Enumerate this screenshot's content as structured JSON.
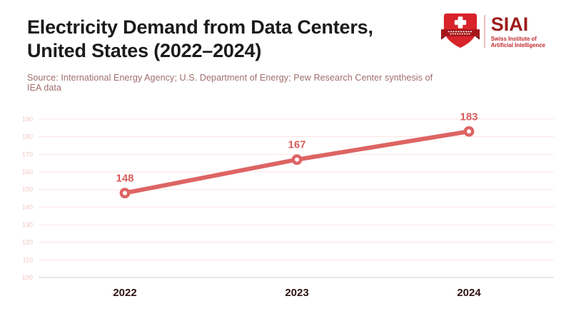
{
  "header": {
    "title_line1": "Electricity Demand from Data Centers,",
    "title_line2": "United States (2022–2024)",
    "source": "Source: International Energy Agency; U.S. Department of Energy; Pew Research Center synthesis of IEA data"
  },
  "logo": {
    "wordmark": "SIAI",
    "tagline_line1": "Swiss Institute of",
    "tagline_line2": "Artificial Intelligence"
  },
  "colors": {
    "title": "#1b1b1b",
    "source": "#a06c6c",
    "accent": "#dd6464",
    "value_label": "#d85c5c",
    "grid": "#fbe4e4",
    "axis_baseline": "#cfcfcf",
    "y_tick": "#f3c6c6",
    "x_tick": "#2e1212",
    "logo_red": "#d8232a",
    "logo_dark_red": "#9e1c1c",
    "logo_banner": "#a4161a",
    "logo_banner_dark": "#7c0e12",
    "logo_tagline": "#c0272d",
    "logo_divider": "#e9bcbc"
  },
  "chart_data": {
    "type": "line",
    "title": "Electricity Demand from Data Centers, United States (2022–2024)",
    "categories": [
      "2022",
      "2023",
      "2024"
    ],
    "values": [
      148,
      167,
      183
    ],
    "data_labels": [
      "148",
      "167",
      "183"
    ],
    "xlabel": "",
    "ylabel": "",
    "ylim": [
      100,
      190
    ],
    "ytick_step": 10,
    "grid": "horizontal",
    "legend": "none",
    "marker": "open-circle"
  }
}
